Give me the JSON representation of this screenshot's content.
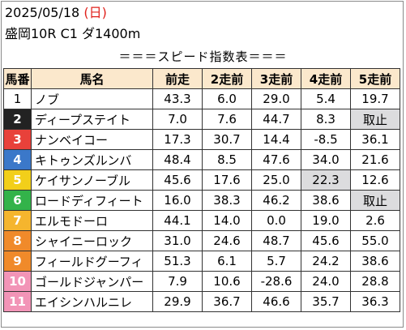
{
  "header": {
    "date": "2025/05/18",
    "dow_open": "(",
    "dow": "日",
    "dow_close": ")",
    "race": "盛岡10R C1 ダ1400m"
  },
  "table_title": "＝＝＝スピード指数表＝＝＝",
  "columns": [
    "馬番",
    "馬名",
    "前走",
    "2走前",
    "3走前",
    "4走前",
    "5走前"
  ],
  "colors": {
    "header_bg": "#fbe8cc",
    "highlight_bg": "#dcdcde",
    "frame_colors": [
      "#ffffff",
      "#222222",
      "#e8413a",
      "#3b78c9",
      "#f2cf1a",
      "#33b34a",
      "#f5b52e",
      "#f08a2a",
      "#f08a2a",
      "#f294b7",
      "#f294b7"
    ],
    "number_text_colors": [
      "#000000",
      "#ffffff",
      "#ffffff",
      "#ffffff",
      "#ffffff",
      "#ffffff",
      "#ffffff",
      "#ffffff",
      "#ffffff",
      "#ffffff",
      "#ffffff"
    ]
  },
  "rows": [
    {
      "num": "1",
      "name": "ノブ",
      "values": [
        "43.3",
        "6.0",
        "29.0",
        "5.4",
        "19.7"
      ],
      "highlight": [
        false,
        false,
        false,
        false,
        false
      ]
    },
    {
      "num": "2",
      "name": "ディープステイト",
      "values": [
        "7.0",
        "7.6",
        "44.7",
        "8.3",
        "取止"
      ],
      "highlight": [
        false,
        false,
        false,
        false,
        true
      ]
    },
    {
      "num": "3",
      "name": "ナンベイコー",
      "values": [
        "17.3",
        "30.7",
        "14.4",
        "-8.5",
        "36.1"
      ],
      "highlight": [
        false,
        false,
        false,
        false,
        false
      ]
    },
    {
      "num": "4",
      "name": "キトゥンズルンバ",
      "values": [
        "48.4",
        "8.5",
        "47.6",
        "34.0",
        "21.6"
      ],
      "highlight": [
        false,
        false,
        false,
        false,
        false
      ]
    },
    {
      "num": "5",
      "name": "ケイサンノーブル",
      "values": [
        "45.6",
        "17.6",
        "25.0",
        "22.3",
        "12.6"
      ],
      "highlight": [
        false,
        false,
        false,
        true,
        false
      ]
    },
    {
      "num": "6",
      "name": "ロードディフィート",
      "values": [
        "16.0",
        "38.3",
        "46.2",
        "38.6",
        "取止"
      ],
      "highlight": [
        false,
        false,
        false,
        false,
        true
      ]
    },
    {
      "num": "7",
      "name": "エルモドーロ",
      "values": [
        "44.1",
        "14.0",
        "0.0",
        "19.0",
        "2.6"
      ],
      "highlight": [
        false,
        false,
        false,
        false,
        false
      ]
    },
    {
      "num": "8",
      "name": "シャイニーロック",
      "values": [
        "31.0",
        "24.6",
        "48.7",
        "45.6",
        "55.0"
      ],
      "highlight": [
        false,
        false,
        false,
        false,
        false
      ]
    },
    {
      "num": "9",
      "name": "フィールドグーフィ",
      "values": [
        "51.3",
        "6.1",
        "5.7",
        "24.2",
        "38.6"
      ],
      "highlight": [
        false,
        false,
        false,
        false,
        false
      ]
    },
    {
      "num": "10",
      "name": "ゴールドジャンパー",
      "values": [
        "7.9",
        "10.6",
        "-28.6",
        "24.0",
        "28.8"
      ],
      "highlight": [
        false,
        false,
        false,
        false,
        false
      ]
    },
    {
      "num": "11",
      "name": "エイシンハルニレ",
      "values": [
        "29.9",
        "36.7",
        "46.6",
        "35.7",
        "36.3"
      ],
      "highlight": [
        false,
        false,
        false,
        false,
        false
      ]
    }
  ]
}
